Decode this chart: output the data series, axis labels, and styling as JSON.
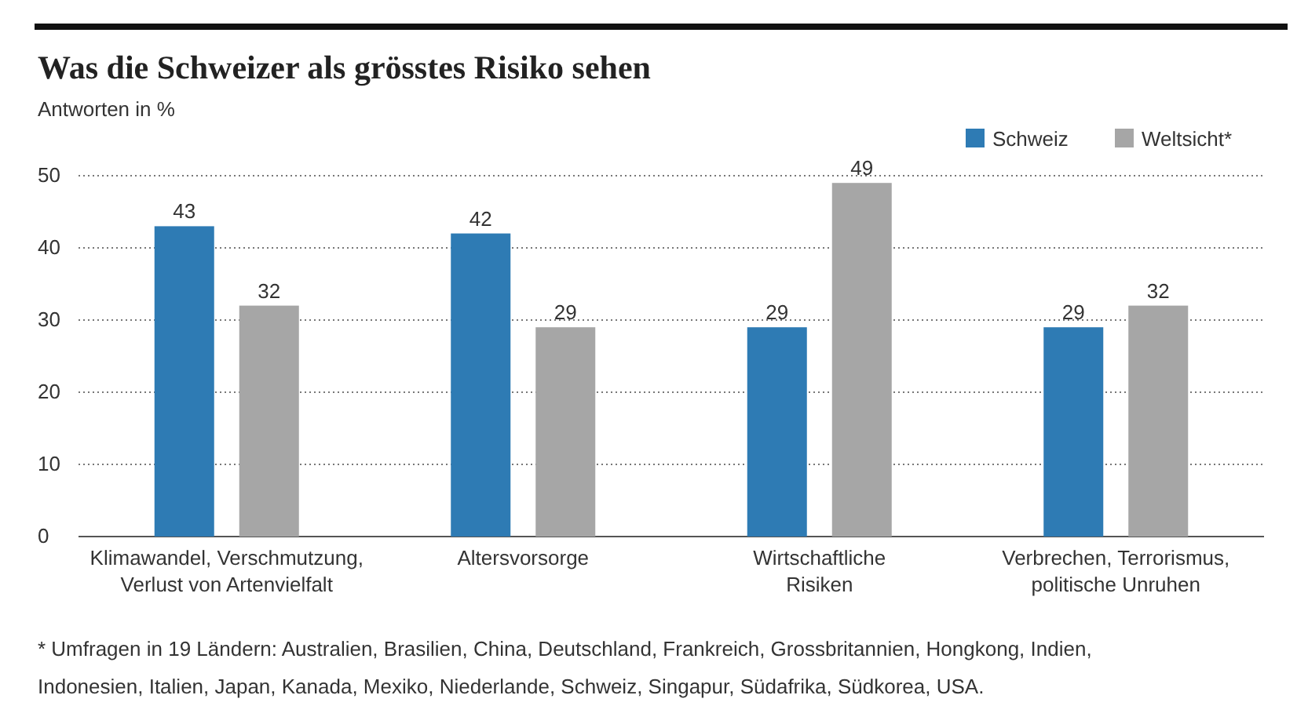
{
  "chart_data": {
    "type": "bar",
    "title": "Was die Schweizer als grösstes Risiko sehen",
    "ylabel": "Antworten in %",
    "categories": [
      "Klimawandel, Verschmutzung,\nVerlust von Artenvielfalt",
      "Altersvorsorge",
      "Wirtschaftliche\nRisiken",
      "Verbrechen, Terrorismus,\npolitische Unruhen"
    ],
    "series": [
      {
        "name": "Schweiz",
        "color": "#2e7bb4",
        "values": [
          43,
          42,
          29,
          29
        ]
      },
      {
        "name": "Weltsicht*",
        "color": "#a6a6a6",
        "values": [
          32,
          29,
          49,
          32
        ]
      }
    ],
    "ylim": [
      0,
      50
    ],
    "yticks": [
      0,
      10,
      20,
      30,
      40,
      50
    ],
    "grid": "y",
    "legend": "top right",
    "data_labels": true,
    "annotations": [
      "* Umfragen in 19 Ländern: Australien, Brasilien, China, Deutschland, Frankreich, Grossbritannien, Hongkong, Indien, Indonesien, Italien, Japan, Kanada, Mexiko, Niederlande, Schweiz, Singapur, Südafrika, Südkorea, USA."
    ]
  }
}
